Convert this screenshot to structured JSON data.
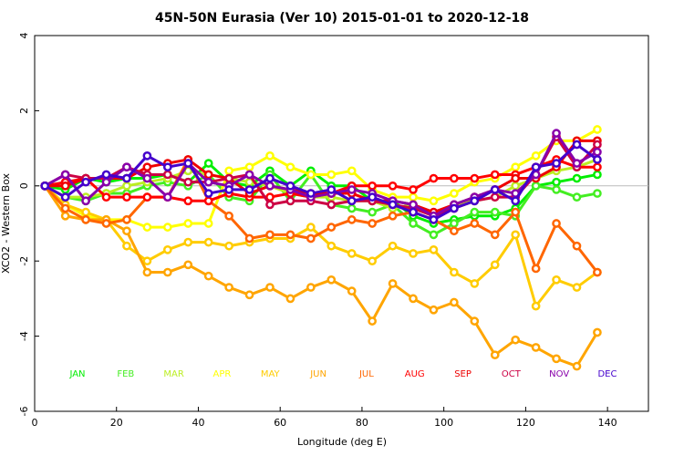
{
  "chart_data": {
    "type": "line",
    "title": "45N-50N Eurasia (Ver 10)   2015-01-01 to 2020-12-18",
    "xlabel": "Longitude (deg E)",
    "ylabel": "XCO2 - Western Box",
    "xlim": [
      0,
      150
    ],
    "ylim": [
      -6,
      4
    ],
    "xticks": [
      0,
      20,
      40,
      60,
      80,
      100,
      120,
      140
    ],
    "yticks": [
      -6,
      -4,
      -2,
      0,
      2,
      4
    ],
    "x": [
      2.5,
      7.5,
      12.5,
      17.5,
      22.5,
      27.5,
      32.5,
      37.5,
      42.5,
      47.5,
      52.5,
      57.5,
      62.5,
      67.5,
      72.5,
      77.5,
      82.5,
      87.5,
      92.5,
      97.5,
      102.5,
      107.5,
      112.5,
      117.5,
      122.5,
      127.5,
      132.5,
      137.5
    ],
    "series": [
      {
        "name": "JAN",
        "color": "#00ee00",
        "values": [
          0,
          -0.1,
          0.2,
          0.1,
          0.2,
          0.2,
          0.3,
          0.1,
          0.6,
          0.1,
          0.0,
          0.4,
          0.0,
          0.4,
          0.0,
          0.0,
          -0.4,
          -0.4,
          -0.8,
          -1.0,
          -0.9,
          -0.8,
          -0.8,
          -0.6,
          0.0,
          0.1,
          0.2,
          0.3
        ]
      },
      {
        "name": "FEB",
        "color": "#44ee22",
        "values": [
          0,
          -0.3,
          -0.4,
          -0.2,
          -0.2,
          0.0,
          0.1,
          0.0,
          0.3,
          -0.3,
          -0.4,
          0.3,
          -0.4,
          0.3,
          -0.5,
          -0.6,
          -0.7,
          -0.5,
          -1.0,
          -1.3,
          -1.0,
          -0.7,
          -0.7,
          -0.8,
          0.0,
          -0.1,
          -0.3,
          -0.2
        ]
      },
      {
        "name": "MAR",
        "color": "#bbee22",
        "values": [
          0,
          -0.3,
          -0.3,
          -0.2,
          0.0,
          0.1,
          0.2,
          0.4,
          0.3,
          0.2,
          0.1,
          0.0,
          -0.2,
          -0.3,
          -0.3,
          -0.4,
          -0.4,
          -0.6,
          -0.5,
          -0.8,
          -0.5,
          -0.4,
          -0.3,
          0.0,
          0.2,
          0.4,
          0.5,
          0.7
        ]
      },
      {
        "name": "APR",
        "color": "#ffff00",
        "values": [
          0,
          -0.5,
          -0.8,
          -0.9,
          -0.9,
          -1.1,
          -1.1,
          -1.0,
          -1.0,
          0.4,
          0.5,
          0.8,
          0.5,
          0.3,
          0.3,
          0.4,
          -0.1,
          -0.3,
          -0.3,
          -0.4,
          -0.2,
          0.1,
          0.2,
          0.5,
          0.8,
          1.2,
          1.2,
          1.5
        ]
      },
      {
        "name": "MAY",
        "color": "#ffcc00",
        "values": [
          0,
          -0.5,
          -0.7,
          -0.9,
          -1.6,
          -2.0,
          -1.7,
          -1.5,
          -1.5,
          -1.6,
          -1.5,
          -1.4,
          -1.4,
          -1.1,
          -1.6,
          -1.8,
          -2.0,
          -1.6,
          -1.8,
          -1.7,
          -2.3,
          -2.6,
          -2.1,
          -1.3,
          -3.2,
          -2.5,
          -2.7,
          -2.3
        ]
      },
      {
        "name": "JUN",
        "color": "#ffa500",
        "values": [
          0,
          -0.8,
          -0.9,
          -0.9,
          -1.2,
          -2.3,
          -2.3,
          -2.1,
          -2.4,
          -2.7,
          -2.9,
          -2.7,
          -3.0,
          -2.7,
          -2.5,
          -2.8,
          -3.6,
          -2.6,
          -3.0,
          -3.3,
          -3.1,
          -3.6,
          -4.5,
          -4.1,
          -4.3,
          -4.6,
          -4.8,
          -3.9
        ]
      },
      {
        "name": "JUL",
        "color": "#ff6600",
        "values": [
          0,
          -0.6,
          -0.9,
          -1.0,
          -0.9,
          -0.3,
          -0.3,
          0.7,
          -0.4,
          -0.8,
          -1.4,
          -1.3,
          -1.3,
          -1.4,
          -1.1,
          -0.9,
          -1.0,
          -0.8,
          -0.7,
          -0.9,
          -1.2,
          -1.0,
          -1.3,
          -0.7,
          -2.2,
          -1.0,
          -1.6,
          -2.3
        ]
      },
      {
        "name": "AUG",
        "color": "#ff0000",
        "values": [
          0,
          0.1,
          0.2,
          -0.3,
          -0.3,
          -0.3,
          -0.3,
          -0.4,
          -0.4,
          -0.2,
          -0.3,
          -0.3,
          -0.2,
          -0.3,
          -0.2,
          0.0,
          0.0,
          0.0,
          -0.1,
          0.2,
          0.2,
          0.2,
          0.3,
          0.3,
          0.5,
          0.7,
          0.5,
          0.5
        ]
      },
      {
        "name": "SEP",
        "color": "#ee0000",
        "values": [
          0,
          0.0,
          0.2,
          0.2,
          0.2,
          0.5,
          0.6,
          0.7,
          0.3,
          0.2,
          -0.2,
          0.0,
          -0.1,
          -0.2,
          -0.2,
          -0.2,
          -0.4,
          -0.4,
          -0.5,
          -0.7,
          -0.5,
          -0.3,
          -0.1,
          0.2,
          0.2,
          0.5,
          1.2,
          1.2
        ]
      },
      {
        "name": "OCT",
        "color": "#cc0044",
        "values": [
          0,
          0.3,
          0.2,
          0.2,
          0.5,
          0.3,
          0.3,
          0.1,
          0.1,
          0.2,
          0.3,
          -0.5,
          -0.4,
          -0.4,
          -0.5,
          -0.4,
          -0.4,
          -0.5,
          -0.6,
          -0.8,
          -0.6,
          -0.4,
          -0.3,
          -0.3,
          0.3,
          1.3,
          0.5,
          1.1
        ]
      },
      {
        "name": "NOV",
        "color": "#8800aa",
        "values": [
          0,
          0.3,
          -0.4,
          0.1,
          0.5,
          0.2,
          -0.3,
          0.6,
          0.1,
          0.0,
          0.3,
          0.0,
          -0.1,
          -0.3,
          -0.2,
          -0.1,
          -0.2,
          -0.4,
          -0.5,
          -0.8,
          -0.5,
          -0.3,
          -0.1,
          -0.2,
          0.3,
          1.4,
          0.6,
          0.9
        ]
      },
      {
        "name": "DEC",
        "color": "#4400cc",
        "values": [
          0,
          -0.3,
          0.1,
          0.3,
          0.2,
          0.8,
          0.5,
          0.6,
          -0.2,
          -0.1,
          -0.1,
          0.2,
          0.0,
          -0.2,
          -0.1,
          -0.4,
          -0.3,
          -0.5,
          -0.7,
          -0.9,
          -0.6,
          -0.4,
          -0.1,
          -0.4,
          0.5,
          0.6,
          1.1,
          0.7
        ]
      }
    ]
  }
}
